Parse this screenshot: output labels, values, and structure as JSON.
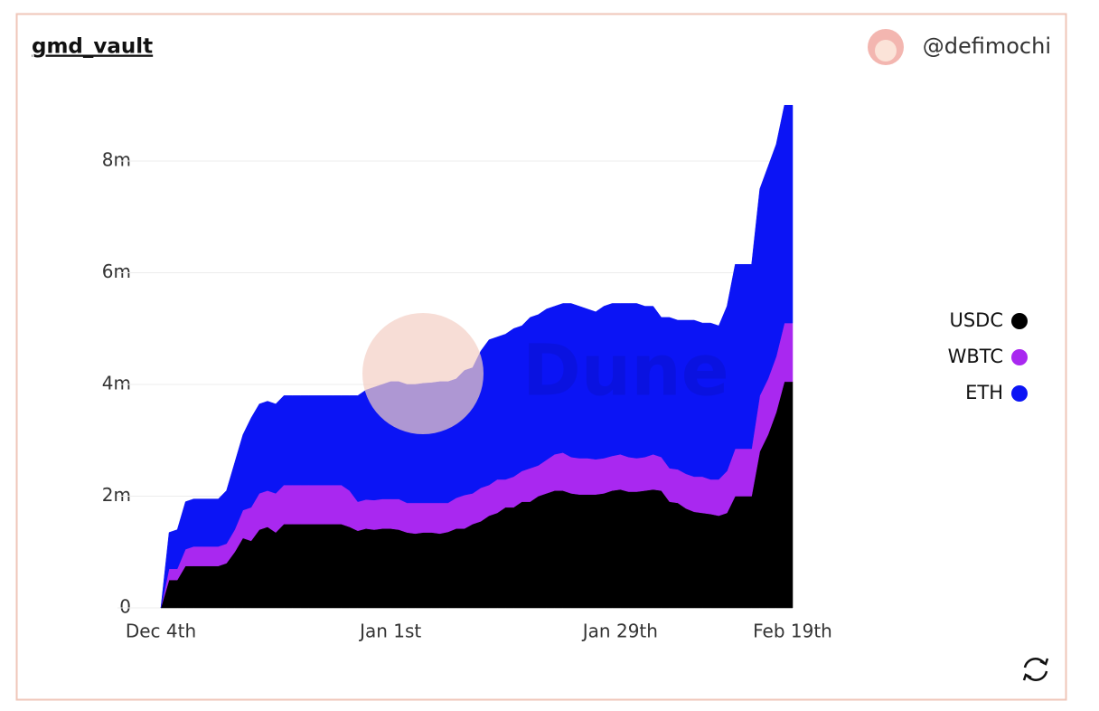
{
  "header": {
    "title": "gmd_vault",
    "author": "@defimochi"
  },
  "chart_data": {
    "type": "stacked-area",
    "watermark": "Dune",
    "categories": [
      "Dec 4th",
      null,
      null,
      null,
      null,
      null,
      null,
      null,
      null,
      null,
      null,
      null,
      null,
      null,
      null,
      null,
      null,
      null,
      null,
      null,
      null,
      null,
      null,
      null,
      null,
      null,
      null,
      null,
      "Jan 1st",
      null,
      null,
      null,
      null,
      null,
      null,
      null,
      null,
      null,
      null,
      null,
      null,
      null,
      null,
      null,
      null,
      null,
      null,
      null,
      null,
      null,
      null,
      null,
      null,
      null,
      null,
      null,
      "Jan 29th",
      null,
      null,
      null,
      null,
      null,
      null,
      null,
      null,
      null,
      null,
      null,
      null,
      null,
      null,
      null,
      null,
      null,
      null,
      null,
      null,
      "Feb 19th"
    ],
    "series": [
      {
        "name": "USDC",
        "color": "#000000",
        "values": [
          0,
          500000,
          500000,
          750000,
          750000,
          750000,
          750000,
          750000,
          800000,
          1000000,
          1250000,
          1200000,
          1400000,
          1450000,
          1350000,
          1500000,
          1500000,
          1500000,
          1500000,
          1500000,
          1500000,
          1500000,
          1500000,
          1450000,
          1380000,
          1420000,
          1400000,
          1420000,
          1420000,
          1400000,
          1350000,
          1330000,
          1350000,
          1350000,
          1330000,
          1360000,
          1420000,
          1420000,
          1500000,
          1550000,
          1650000,
          1700000,
          1800000,
          1800000,
          1900000,
          1900000,
          2000000,
          2050000,
          2100000,
          2100000,
          2050000,
          2030000,
          2030000,
          2030000,
          2050000,
          2100000,
          2120000,
          2080000,
          2080000,
          2100000,
          2120000,
          2100000,
          1900000,
          1880000,
          1780000,
          1720000,
          1700000,
          1680000,
          1650000,
          1700000,
          2000000,
          2000000,
          2000000,
          2800000,
          3100000,
          3500000,
          4050000,
          4050000
        ]
      },
      {
        "name": "WBTC",
        "color": "#a928f0",
        "values": [
          0,
          200000,
          200000,
          300000,
          350000,
          350000,
          350000,
          350000,
          350000,
          400000,
          500000,
          600000,
          650000,
          650000,
          700000,
          700000,
          700000,
          700000,
          700000,
          700000,
          700000,
          700000,
          700000,
          650000,
          520000,
          520000,
          530000,
          530000,
          530000,
          550000,
          530000,
          550000,
          530000,
          530000,
          550000,
          520000,
          550000,
          600000,
          550000,
          600000,
          550000,
          600000,
          500000,
          550000,
          550000,
          600000,
          550000,
          600000,
          650000,
          680000,
          650000,
          650000,
          650000,
          630000,
          630000,
          620000,
          630000,
          620000,
          600000,
          600000,
          630000,
          600000,
          600000,
          600000,
          620000,
          630000,
          650000,
          620000,
          650000,
          750000,
          850000,
          850000,
          850000,
          1000000,
          1000000,
          1000000,
          1050000,
          1050000
        ]
      },
      {
        "name": "ETH",
        "color": "#0b14f5",
        "values": [
          0,
          650000,
          700000,
          850000,
          850000,
          850000,
          850000,
          850000,
          950000,
          1200000,
          1350000,
          1600000,
          1600000,
          1600000,
          1600000,
          1600000,
          1600000,
          1600000,
          1600000,
          1600000,
          1600000,
          1600000,
          1600000,
          1700000,
          1900000,
          1960000,
          2020000,
          2050000,
          2100000,
          2100000,
          2120000,
          2120000,
          2140000,
          2150000,
          2170000,
          2170000,
          2130000,
          2230000,
          2250000,
          2450000,
          2600000,
          2550000,
          2600000,
          2650000,
          2600000,
          2700000,
          2700000,
          2700000,
          2650000,
          2670000,
          2750000,
          2720000,
          2670000,
          2640000,
          2720000,
          2730000,
          2700000,
          2750000,
          2770000,
          2700000,
          2650000,
          2500000,
          2700000,
          2670000,
          2750000,
          2800000,
          2750000,
          2800000,
          2750000,
          2950000,
          3300000,
          3300000,
          3300000,
          3700000,
          3800000,
          3800000,
          3900000,
          3900000
        ]
      }
    ],
    "ylim": [
      0,
      9000000
    ],
    "yticks": [
      0,
      {
        "value": 2000000,
        "label": "2m"
      },
      {
        "value": 4000000,
        "label": "4m"
      },
      {
        "value": 6000000,
        "label": "6m"
      },
      {
        "value": 8000000,
        "label": "8m"
      }
    ],
    "grid": true,
    "legend": "right"
  }
}
